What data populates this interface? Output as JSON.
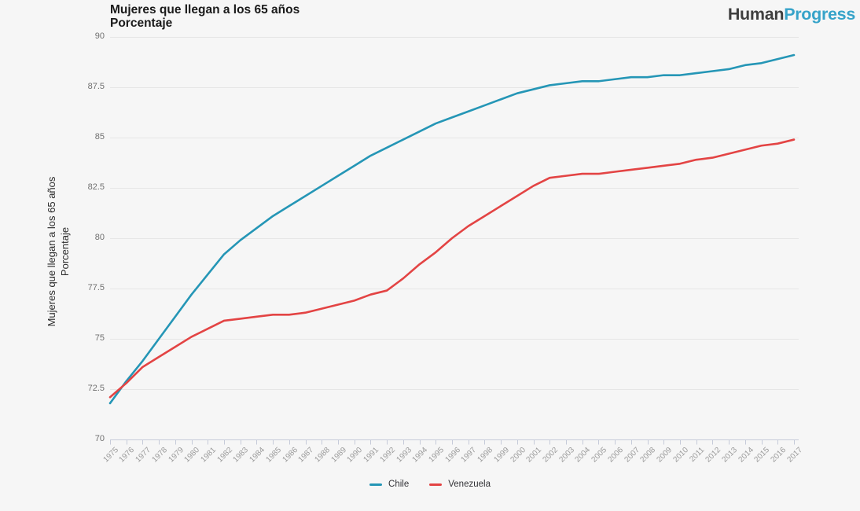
{
  "header": {
    "title_line1": "Mujeres que llegan a los 65 años",
    "title_line2": "Porcentaje",
    "logo": {
      "part1": "Human",
      "part2": "Progress",
      "part1_color": "#3f3f3f",
      "part2_color": "#36a3c9"
    }
  },
  "colors": {
    "background": "#f6f6f6",
    "gridline": "#e6e6e6",
    "axis_line": "#c6cbd9",
    "x_label": "#9a9a9a",
    "y_label": "#707070"
  },
  "chart_data": {
    "type": "line",
    "title": "Mujeres que llegan a los 65 años",
    "subtitle": "Porcentaje",
    "y_axis_title_line1": "Mujeres que llegan a los 65 años",
    "y_axis_title_line2": "Porcentaje",
    "ylim": [
      70,
      90
    ],
    "yticks": [
      70,
      72.5,
      75,
      77.5,
      80,
      82.5,
      85,
      87.5,
      90
    ],
    "grid": "horizontal",
    "legend_position": "bottom",
    "x": [
      1975,
      1976,
      1977,
      1978,
      1979,
      1980,
      1981,
      1982,
      1983,
      1984,
      1985,
      1986,
      1987,
      1988,
      1989,
      1990,
      1991,
      1992,
      1993,
      1994,
      1995,
      1996,
      1997,
      1998,
      1999,
      2000,
      2001,
      2002,
      2003,
      2004,
      2005,
      2006,
      2007,
      2008,
      2009,
      2010,
      2011,
      2012,
      2013,
      2014,
      2015,
      2016,
      2017
    ],
    "series": [
      {
        "name": "Chile",
        "color": "#2596B6",
        "values": [
          71.8,
          72.9,
          73.9,
          75.0,
          76.1,
          77.2,
          78.2,
          79.2,
          79.9,
          80.5,
          81.1,
          81.6,
          82.1,
          82.6,
          83.1,
          83.6,
          84.1,
          84.5,
          84.9,
          85.3,
          85.7,
          86.0,
          86.3,
          86.6,
          86.9,
          87.2,
          87.4,
          87.6,
          87.7,
          87.8,
          87.8,
          87.9,
          88.0,
          88.0,
          88.1,
          88.1,
          88.2,
          88.3,
          88.4,
          88.6,
          88.7,
          88.9,
          89.1
        ]
      },
      {
        "name": "Venezuela",
        "color": "#E34444",
        "values": [
          72.1,
          72.8,
          73.6,
          74.1,
          74.6,
          75.1,
          75.5,
          75.9,
          76.0,
          76.1,
          76.2,
          76.2,
          76.3,
          76.5,
          76.7,
          76.9,
          77.2,
          77.4,
          78.0,
          78.7,
          79.3,
          80.0,
          80.6,
          81.1,
          81.6,
          82.1,
          82.6,
          83.0,
          83.1,
          83.2,
          83.2,
          83.3,
          83.4,
          83.5,
          83.6,
          83.7,
          83.9,
          84.0,
          84.2,
          84.4,
          84.6,
          84.7,
          84.9
        ]
      }
    ]
  }
}
